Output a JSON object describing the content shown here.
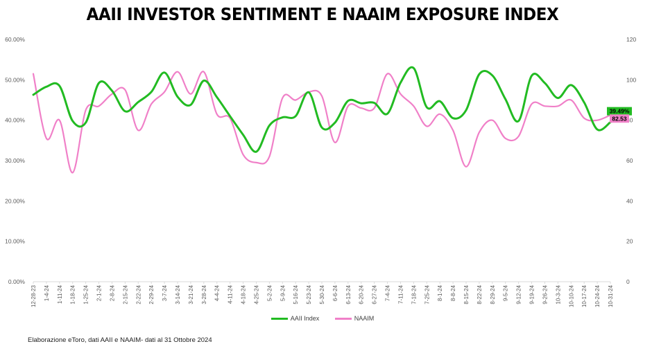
{
  "chart_data": {
    "type": "line",
    "title": "AAII INVESTOR SENTIMENT E NAAIM EXPOSURE INDEX",
    "categories": [
      "12-28-23",
      "1-4-24",
      "1-11-24",
      "1-18-24",
      "1-25-24",
      "2-1-24",
      "2-8-24",
      "2-15-24",
      "2-22-24",
      "2-29-24",
      "3-7-24",
      "3-14-24",
      "3-21-24",
      "3-28-24",
      "4-4-24",
      "4-11-24",
      "4-18-24",
      "4-25-24",
      "5-2-24",
      "5-9-24",
      "5-16-24",
      "5-23-24",
      "5-30-24",
      "6-6-24",
      "6-13-24",
      "6-20-24",
      "6-27-24",
      "7-4-24",
      "7-11-24",
      "7-18-24",
      "7-25-24",
      "8-1-24",
      "8-8-24",
      "8-15-24",
      "8-22-24",
      "8-29-24",
      "9-5-24",
      "9-12-24",
      "9-19-24",
      "9-26-24",
      "10-3-24",
      "10-10-24",
      "10-17-24",
      "10-24-24",
      "10-31-24"
    ],
    "y_left": {
      "ticks": [
        "0.00%",
        "10.00%",
        "20.00%",
        "30.00%",
        "40.00%",
        "50.00%",
        "60.00%"
      ],
      "range": [
        0,
        60
      ]
    },
    "y_right": {
      "ticks": [
        "0",
        "20",
        "40",
        "60",
        "80",
        "100",
        "120"
      ],
      "range": [
        0,
        120
      ]
    },
    "series": [
      {
        "name": "AAII Index",
        "axis": "left",
        "color": "#22bb22",
        "values": [
          46.3,
          48.3,
          48.5,
          39.8,
          39.4,
          49.2,
          47.3,
          42.2,
          44.5,
          47.0,
          51.8,
          45.8,
          43.8,
          49.8,
          45.7,
          41.0,
          36.4,
          32.2,
          38.7,
          40.7,
          41.0,
          46.9,
          38.2,
          39.4,
          44.8,
          44.2,
          44.3,
          41.6,
          49.3,
          52.9,
          43.2,
          44.7,
          40.5,
          42.5,
          51.4,
          51.1,
          45.2,
          39.8,
          51.0,
          49.2,
          45.5,
          48.7,
          44.4,
          37.7,
          39.49
        ]
      },
      {
        "name": "NAAIM",
        "axis": "right",
        "color": "#f080c8",
        "values": [
          103,
          71,
          80,
          54,
          85,
          87,
          93,
          95,
          75,
          88,
          94,
          104,
          93,
          104,
          83,
          81,
          63,
          59,
          62,
          91,
          90,
          94,
          92,
          69,
          87,
          86,
          86,
          103,
          93,
          87,
          77,
          83,
          75,
          57,
          74,
          80,
          71,
          72,
          88,
          87,
          87,
          90,
          81,
          80,
          82.53
        ]
      }
    ],
    "end_labels": {
      "aaii": "39.49%",
      "naaim": "82.53"
    },
    "legend": {
      "position": "bottom"
    },
    "grid": false,
    "footnote": "Elaborazione eToro, dati AAII  e NAAIM- dati al 31 Ottobre 2024"
  }
}
